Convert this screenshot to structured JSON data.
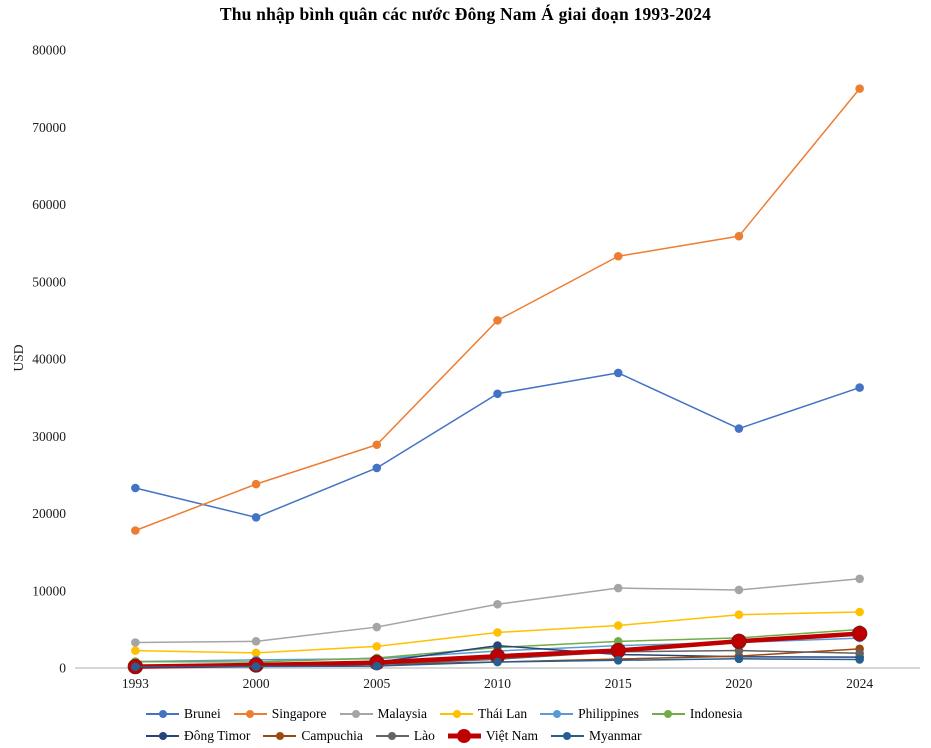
{
  "title": "Thu nhập bình quân các nước Đông Nam Á giai đoạn 1993-2024",
  "chart_data": {
    "type": "line",
    "title": "Thu nhập bình quân các nước Đông Nam Á giai đoạn 1993-2024",
    "xlabel": "",
    "ylabel": "USD",
    "categories": [
      "1993",
      "2000",
      "2005",
      "2010",
      "2015",
      "2020",
      "2024"
    ],
    "ylim": [
      0,
      80000
    ],
    "yticks": [
      0,
      10000,
      20000,
      30000,
      40000,
      50000,
      60000,
      70000,
      80000
    ],
    "grid": false,
    "legend_position": "bottom",
    "axis_line_color": "#BFBFBF",
    "series": [
      {
        "name": "Brunei",
        "color": "#4472C4",
        "values": [
          23300,
          19500,
          25900,
          35500,
          38200,
          31000,
          36300
        ]
      },
      {
        "name": "Singapore",
        "color": "#ED7D31",
        "values": [
          17800,
          23800,
          28900,
          45000,
          53300,
          55900,
          75000
        ]
      },
      {
        "name": "Malaysia",
        "color": "#A5A5A5",
        "values": [
          3300,
          3450,
          5300,
          8250,
          10350,
          10100,
          11550
        ]
      },
      {
        "name": "Thái Lan",
        "color": "#FFC000",
        "values": [
          2250,
          1960,
          2800,
          4600,
          5500,
          6900,
          7250
        ]
      },
      {
        "name": "Philippines",
        "color": "#5B9BD5",
        "values": [
          820,
          1050,
          1200,
          2200,
          2900,
          3300,
          3870
        ]
      },
      {
        "name": "Indonesia",
        "color": "#70AD47",
        "values": [
          830,
          780,
          1300,
          2650,
          3450,
          3900,
          4980
        ]
      },
      {
        "name": "Đông Timor",
        "color": "#264478",
        "values": [
          300,
          420,
          750,
          2900,
          1750,
          1450,
          1400
        ]
      },
      {
        "name": "Campuchia",
        "color": "#9E480E",
        "values": [
          240,
          300,
          470,
          780,
          1160,
          1540,
          2480
        ]
      },
      {
        "name": "Lào",
        "color": "#636363",
        "values": [
          330,
          320,
          480,
          1140,
          2100,
          2260,
          1910
        ]
      },
      {
        "name": "Việt Nam",
        "color": "#C00000",
        "values": [
          185,
          390,
          700,
          1520,
          2260,
          3460,
          4450
        ],
        "emphasis": true
      },
      {
        "name": "Myanmar",
        "color": "#255E91",
        "values": [
          160,
          190,
          250,
          780,
          1000,
          1190,
          1100
        ]
      }
    ]
  }
}
